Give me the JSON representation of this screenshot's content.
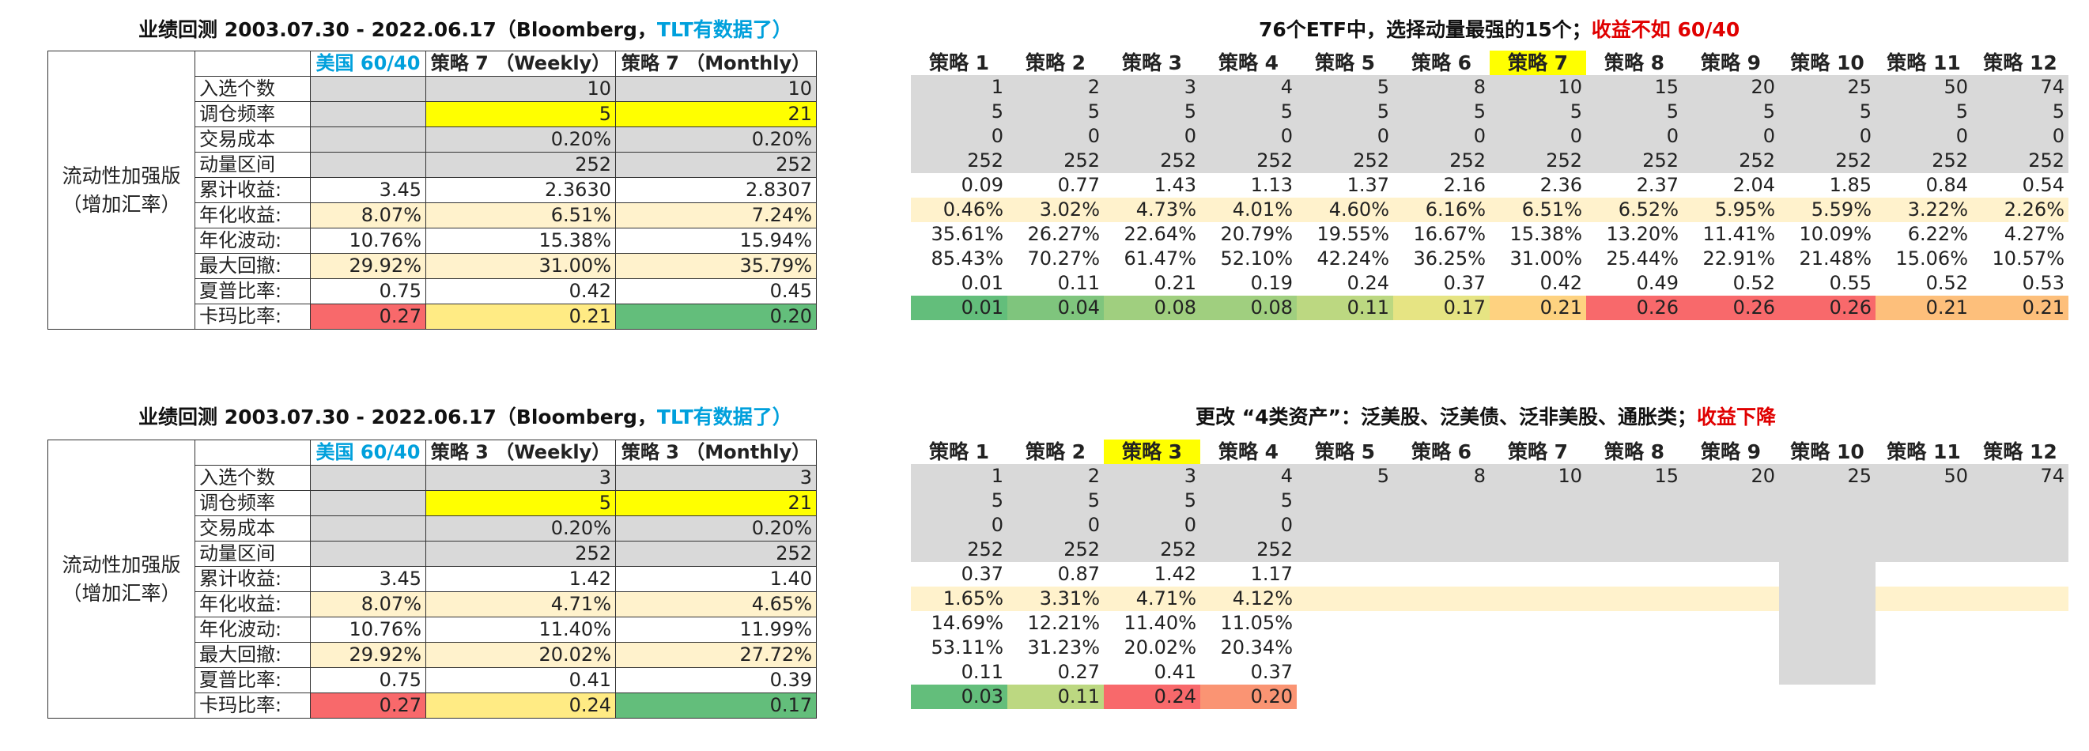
{
  "panel1": {
    "left_title": "业绩回测 2003.07.30 - 2022.06.17（Bloomberg，",
    "left_title_blue": "TLT有数据了）",
    "side_label_1": "流动性加强版",
    "side_label_2": "（增加汇率）",
    "headers": [
      "美国 60/40",
      "策略 7 （Weekly）",
      "策略 7 （Monthly）"
    ],
    "rows": [
      {
        "label": "入选个数",
        "vals": [
          "",
          "10",
          "10"
        ]
      },
      {
        "label": "调仓频率",
        "vals": [
          "",
          "5",
          "21"
        ]
      },
      {
        "label": "交易成本",
        "vals": [
          "",
          "0.20%",
          "0.20%"
        ]
      },
      {
        "label": "动量区间",
        "vals": [
          "",
          "252",
          "252"
        ]
      },
      {
        "label": "累计收益:",
        "vals": [
          "3.45",
          "2.3630",
          "2.8307"
        ]
      },
      {
        "label": "年化收益:",
        "vals": [
          "8.07%",
          "6.51%",
          "7.24%"
        ]
      },
      {
        "label": "年化波动:",
        "vals": [
          "10.76%",
          "15.38%",
          "15.94%"
        ]
      },
      {
        "label": "最大回撤:",
        "vals": [
          "29.92%",
          "31.00%",
          "35.79%"
        ]
      },
      {
        "label": "夏普比率:",
        "vals": [
          "0.75",
          "0.42",
          "0.45"
        ]
      },
      {
        "label": "卡玛比率:",
        "vals": [
          "0.27",
          "0.21",
          "0.20"
        ]
      }
    ],
    "right_title": "76个ETF中，选择动量最强的15个；",
    "right_title_red": "收益不如 60/40",
    "strategies": [
      "策略 1",
      "策略 2",
      "策略 3",
      "策略 4",
      "策略 5",
      "策略 6",
      "策略 7",
      "策略 8",
      "策略 9",
      "策略 10",
      "策略 11",
      "策略 12"
    ],
    "grid": [
      [
        "1",
        "2",
        "3",
        "4",
        "5",
        "8",
        "10",
        "15",
        "20",
        "25",
        "50",
        "74"
      ],
      [
        "5",
        "5",
        "5",
        "5",
        "5",
        "5",
        "5",
        "5",
        "5",
        "5",
        "5",
        "5"
      ],
      [
        "0",
        "0",
        "0",
        "0",
        "0",
        "0",
        "0",
        "0",
        "0",
        "0",
        "0",
        "0"
      ],
      [
        "252",
        "252",
        "252",
        "252",
        "252",
        "252",
        "252",
        "252",
        "252",
        "252",
        "252",
        "252"
      ],
      [
        "0.09",
        "0.77",
        "1.43",
        "1.13",
        "1.37",
        "2.16",
        "2.36",
        "2.37",
        "2.04",
        "1.85",
        "0.84",
        "0.54"
      ],
      [
        "0.46%",
        "3.02%",
        "4.73%",
        "4.01%",
        "4.60%",
        "6.16%",
        "6.51%",
        "6.52%",
        "5.95%",
        "5.59%",
        "3.22%",
        "2.26%"
      ],
      [
        "35.61%",
        "26.27%",
        "22.64%",
        "20.79%",
        "19.55%",
        "16.67%",
        "15.38%",
        "13.20%",
        "11.41%",
        "10.09%",
        "6.22%",
        "4.27%"
      ],
      [
        "85.43%",
        "70.27%",
        "61.47%",
        "52.10%",
        "42.24%",
        "36.25%",
        "31.00%",
        "25.44%",
        "22.91%",
        "21.48%",
        "15.06%",
        "10.57%"
      ],
      [
        "0.01",
        "0.11",
        "0.21",
        "0.19",
        "0.24",
        "0.37",
        "0.42",
        "0.49",
        "0.52",
        "0.55",
        "0.52",
        "0.53"
      ],
      [
        "0.01",
        "0.04",
        "0.08",
        "0.08",
        "0.11",
        "0.17",
        "0.21",
        "0.26",
        "0.26",
        "0.26",
        "0.21",
        "0.21"
      ]
    ],
    "calmar_colors": [
      "#63be7b",
      "#7fc57d",
      "#a0cf7f",
      "#a0cf7f",
      "#bcd881",
      "#e6e483",
      "#fed280",
      "#f8696b",
      "#f8696b",
      "#f8696b",
      "#fdbf7b",
      "#fdbf7b"
    ],
    "highlight_index": 6
  },
  "panel2": {
    "left_title": "业绩回测 2003.07.30 - 2022.06.17（Bloomberg，",
    "left_title_blue": "TLT有数据了）",
    "side_label_1": "流动性加强版",
    "side_label_2": "（增加汇率）",
    "headers": [
      "美国 60/40",
      "策略 3 （Weekly）",
      "策略 3 （Monthly）"
    ],
    "rows": [
      {
        "label": "入选个数",
        "vals": [
          "",
          "3",
          "3"
        ]
      },
      {
        "label": "调仓频率",
        "vals": [
          "",
          "5",
          "21"
        ]
      },
      {
        "label": "交易成本",
        "vals": [
          "",
          "0.20%",
          "0.20%"
        ]
      },
      {
        "label": "动量区间",
        "vals": [
          "",
          "252",
          "252"
        ]
      },
      {
        "label": "累计收益:",
        "vals": [
          "3.45",
          "1.42",
          "1.40"
        ]
      },
      {
        "label": "年化收益:",
        "vals": [
          "8.07%",
          "4.71%",
          "4.65%"
        ]
      },
      {
        "label": "年化波动:",
        "vals": [
          "10.76%",
          "11.40%",
          "11.99%"
        ]
      },
      {
        "label": "最大回撤:",
        "vals": [
          "29.92%",
          "20.02%",
          "27.72%"
        ]
      },
      {
        "label": "夏普比率:",
        "vals": [
          "0.75",
          "0.41",
          "0.39"
        ]
      },
      {
        "label": "卡玛比率:",
        "vals": [
          "0.27",
          "0.24",
          "0.17"
        ]
      }
    ],
    "right_title": "更改 “4类资产”：泛美股、泛美债、泛非美股、通胀类；",
    "right_title_red": "收益下降",
    "strategies": [
      "策略 1",
      "策略 2",
      "策略 3",
      "策略 4",
      "策略 5",
      "策略 6",
      "策略 7",
      "策略 8",
      "策略 9",
      "策略 10",
      "策略 11",
      "策略 12"
    ],
    "grid": [
      [
        "1",
        "2",
        "3",
        "4",
        "5",
        "8",
        "10",
        "15",
        "20",
        "25",
        "50",
        "74"
      ],
      [
        "5",
        "5",
        "5",
        "5",
        "",
        "",
        "",
        "",
        "",
        "",
        "",
        ""
      ],
      [
        "0",
        "0",
        "0",
        "0",
        "",
        "",
        "",
        "",
        "",
        "",
        "",
        ""
      ],
      [
        "252",
        "252",
        "252",
        "252",
        "",
        "",
        "",
        "",
        "",
        "",
        "",
        ""
      ],
      [
        "0.37",
        "0.87",
        "1.42",
        "1.17",
        "",
        "",
        "",
        "",
        "",
        "",
        "",
        ""
      ],
      [
        "1.65%",
        "3.31%",
        "4.71%",
        "4.12%",
        "",
        "",
        "",
        "",
        "",
        "",
        "",
        ""
      ],
      [
        "14.69%",
        "12.21%",
        "11.40%",
        "11.05%",
        "",
        "",
        "",
        "",
        "",
        "",
        "",
        ""
      ],
      [
        "53.11%",
        "31.23%",
        "20.02%",
        "20.34%",
        "",
        "",
        "",
        "",
        "",
        "",
        "",
        ""
      ],
      [
        "0.11",
        "0.27",
        "0.41",
        "0.37",
        "",
        "",
        "",
        "",
        "",
        "",
        "",
        ""
      ],
      [
        "0.03",
        "0.11",
        "0.24",
        "0.20",
        "",
        "",
        "",
        "",
        "",
        "",
        "",
        ""
      ]
    ],
    "calmar_colors": [
      "#63be7b",
      "#bcd881",
      "#f8696b",
      "#fa9473",
      "",
      "",
      "",
      "",
      "",
      "",
      "",
      ""
    ],
    "highlight_index": 2
  },
  "colors": {
    "gray": "#d9d9d9",
    "yellow": "#ffff00",
    "cream": "#fff2cc",
    "red_cell": "#f8696b",
    "yellow_cell": "#ffeb84",
    "green_cell": "#63be7b"
  }
}
